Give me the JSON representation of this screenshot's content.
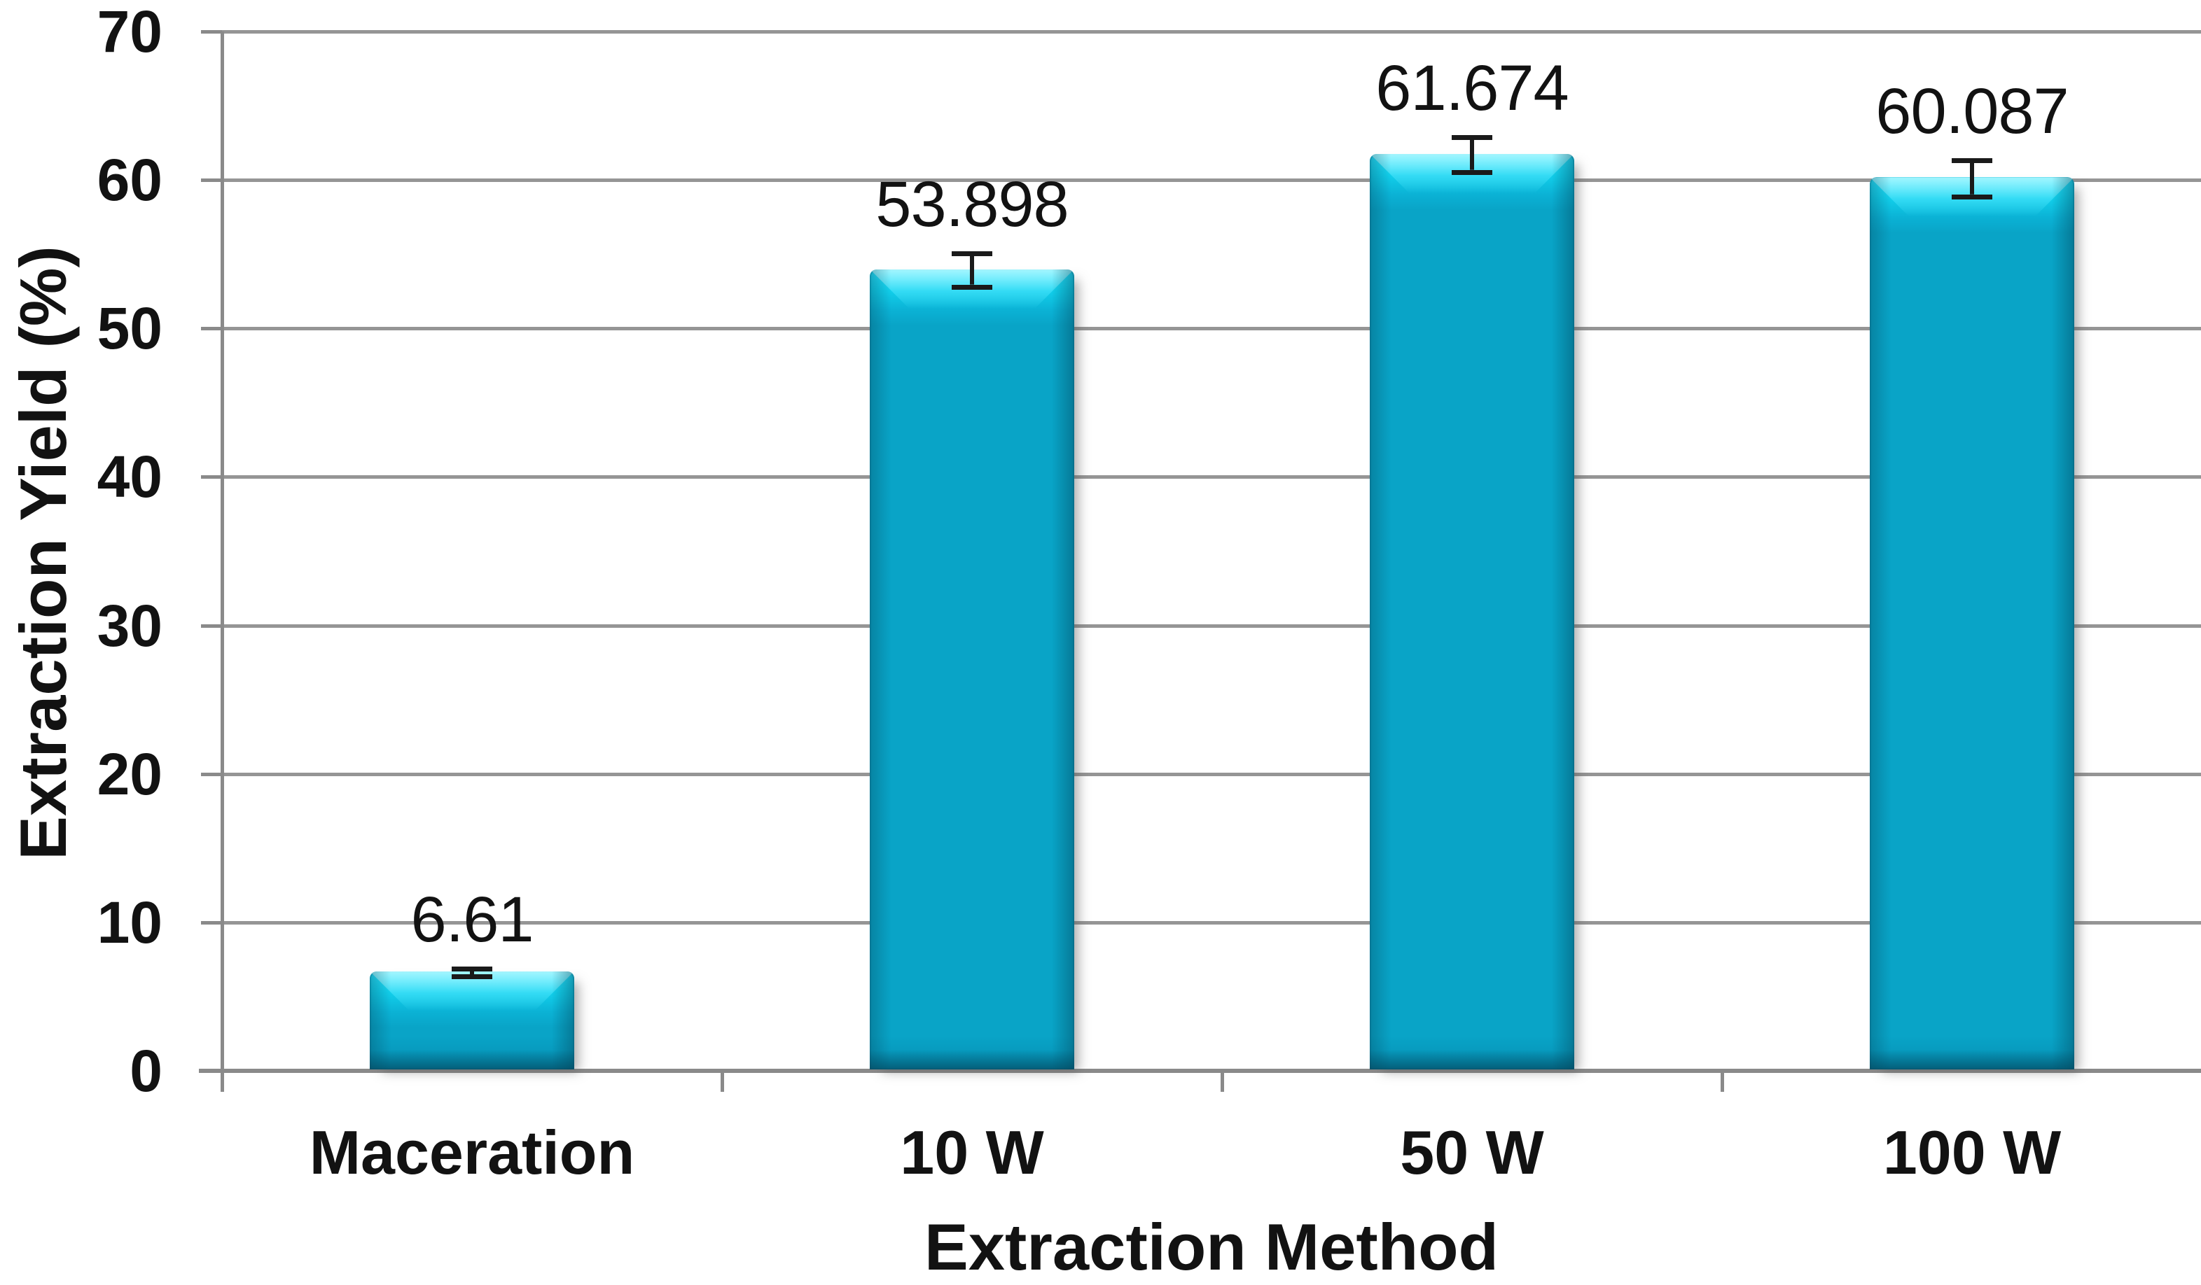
{
  "chart_data": {
    "type": "bar",
    "title": "",
    "categories": [
      "Maceration",
      "10 W",
      "50 W",
      "100 W"
    ],
    "values": [
      6.61,
      53.898,
      61.674,
      60.087
    ],
    "data_labels": [
      "6.61",
      "53.898",
      "61.674",
      "60.087"
    ],
    "error_bars_plus_minus": [
      0.1,
      0.95,
      1.0,
      1.05
    ],
    "xlabel": "Extraction Method",
    "ylabel": "Extraction Yield (%)",
    "ylim": [
      0,
      70
    ],
    "ytick_step": 10,
    "yticks": [
      0,
      10,
      20,
      30,
      40,
      50,
      60,
      70
    ],
    "ytick_labels": [
      "0",
      "10",
      "20",
      "30",
      "40",
      "50",
      "60",
      "70"
    ],
    "grid": "horizontal",
    "legend": "none",
    "bar_color": "#09A4C7",
    "bar_highlight_color": "#2BE5FF",
    "gridline_color": "#959595",
    "axis_color": "#8A8A8A",
    "error_bar_color": "#1A1A1A",
    "text_color": "#121212",
    "background_color": "#FFFFFF"
  }
}
